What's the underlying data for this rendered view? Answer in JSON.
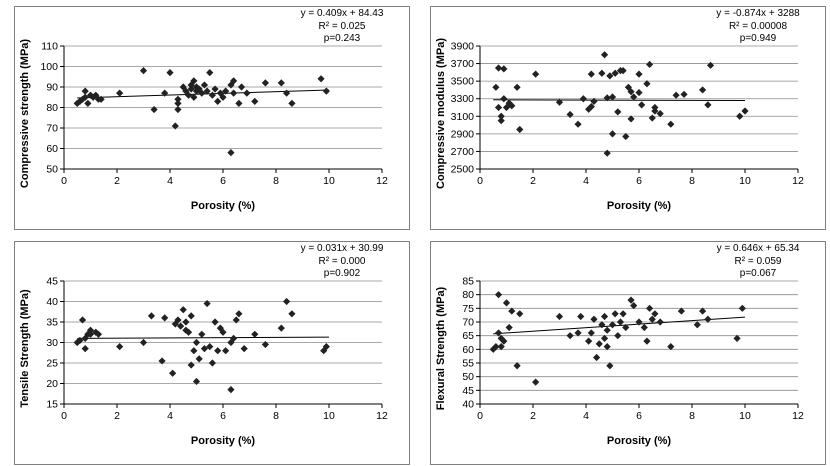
{
  "charts": [
    {
      "id": "compressive-strength",
      "chart_data": {
        "type": "scatter",
        "title": "",
        "xlabel": "Porosity (%)",
        "ylabel": "Compressive strength (MPa)",
        "xlim": [
          0,
          12
        ],
        "ylim": [
          50,
          110
        ],
        "xticks": [
          0,
          2,
          4,
          6,
          8,
          10,
          12
        ],
        "yticks": [
          50,
          60,
          70,
          80,
          90,
          100,
          110
        ],
        "grid": "horizontal",
        "marker_color": "#222222",
        "trendline": {
          "slope": 0.409,
          "intercept": 84.43
        },
        "annotation": [
          "y = 0.409x + 84.43",
          "R² = 0.025",
          "p=0.243"
        ],
        "points": [
          [
            0.5,
            82
          ],
          [
            0.6,
            83
          ],
          [
            0.7,
            84
          ],
          [
            0.8,
            85
          ],
          [
            0.8,
            88
          ],
          [
            0.9,
            82
          ],
          [
            1.0,
            86
          ],
          [
            1.1,
            85
          ],
          [
            1.2,
            86
          ],
          [
            1.3,
            84
          ],
          [
            1.4,
            84
          ],
          [
            2.1,
            87
          ],
          [
            3.0,
            98
          ],
          [
            3.4,
            79
          ],
          [
            3.8,
            87
          ],
          [
            4.0,
            97
          ],
          [
            4.2,
            71
          ],
          [
            4.3,
            79
          ],
          [
            4.3,
            82
          ],
          [
            4.3,
            84
          ],
          [
            4.5,
            90
          ],
          [
            4.6,
            88
          ],
          [
            4.7,
            86
          ],
          [
            4.8,
            89
          ],
          [
            4.8,
            91
          ],
          [
            4.9,
            85
          ],
          [
            4.9,
            93
          ],
          [
            5.0,
            88
          ],
          [
            5.0,
            90
          ],
          [
            5.1,
            89
          ],
          [
            5.2,
            87
          ],
          [
            5.3,
            91
          ],
          [
            5.4,
            88
          ],
          [
            5.5,
            97
          ],
          [
            5.6,
            86
          ],
          [
            5.7,
            89
          ],
          [
            5.8,
            83
          ],
          [
            5.9,
            87
          ],
          [
            6.0,
            85
          ],
          [
            6.1,
            88
          ],
          [
            6.3,
            58
          ],
          [
            6.3,
            91
          ],
          [
            6.4,
            93
          ],
          [
            6.4,
            87
          ],
          [
            6.6,
            82
          ],
          [
            6.7,
            90
          ],
          [
            6.9,
            87
          ],
          [
            7.2,
            83
          ],
          [
            7.6,
            92
          ],
          [
            8.2,
            92
          ],
          [
            8.4,
            87
          ],
          [
            8.6,
            82
          ],
          [
            9.7,
            94
          ],
          [
            9.9,
            88
          ]
        ]
      }
    },
    {
      "id": "compressive-modulus",
      "chart_data": {
        "type": "scatter",
        "title": "",
        "xlabel": "Porosity (%)",
        "ylabel": "Compressive modulus (MPa)",
        "xlim": [
          0,
          12
        ],
        "ylim": [
          2500,
          3900
        ],
        "xticks": [
          0,
          2,
          4,
          6,
          8,
          10,
          12
        ],
        "yticks": [
          2500,
          2700,
          2900,
          3100,
          3300,
          3500,
          3700,
          3900
        ],
        "grid": "horizontal",
        "marker_color": "#222222",
        "trendline": {
          "slope": -0.874,
          "intercept": 3288
        },
        "annotation": [
          "y = -0.874x + 3288",
          "R² = 0.00008",
          "p=0.949"
        ],
        "points": [
          [
            0.6,
            3430
          ],
          [
            0.7,
            3650
          ],
          [
            0.7,
            3200
          ],
          [
            0.8,
            3100
          ],
          [
            0.8,
            3050
          ],
          [
            0.9,
            3640
          ],
          [
            0.9,
            3300
          ],
          [
            1.0,
            3200
          ],
          [
            1.1,
            3250
          ],
          [
            1.2,
            3220
          ],
          [
            1.4,
            3430
          ],
          [
            1.5,
            2950
          ],
          [
            2.1,
            3580
          ],
          [
            3.0,
            3260
          ],
          [
            3.4,
            3120
          ],
          [
            3.7,
            3010
          ],
          [
            3.9,
            3300
          ],
          [
            4.1,
            3180
          ],
          [
            4.2,
            3210
          ],
          [
            4.2,
            3580
          ],
          [
            4.3,
            3270
          ],
          [
            4.6,
            3590
          ],
          [
            4.7,
            3800
          ],
          [
            4.8,
            2680
          ],
          [
            4.8,
            3310
          ],
          [
            4.9,
            3560
          ],
          [
            5.0,
            3320
          ],
          [
            5.0,
            2900
          ],
          [
            5.1,
            3590
          ],
          [
            5.2,
            3150
          ],
          [
            5.3,
            3620
          ],
          [
            5.4,
            3620
          ],
          [
            5.5,
            2870
          ],
          [
            5.6,
            3430
          ],
          [
            5.7,
            3380
          ],
          [
            5.7,
            3070
          ],
          [
            5.8,
            3320
          ],
          [
            6.0,
            3370
          ],
          [
            6.0,
            3580
          ],
          [
            6.1,
            3230
          ],
          [
            6.3,
            3470
          ],
          [
            6.4,
            3690
          ],
          [
            6.5,
            3080
          ],
          [
            6.6,
            3200
          ],
          [
            6.6,
            3160
          ],
          [
            6.8,
            3130
          ],
          [
            7.2,
            3010
          ],
          [
            7.4,
            3340
          ],
          [
            7.7,
            3350
          ],
          [
            8.4,
            3400
          ],
          [
            8.6,
            3230
          ],
          [
            8.7,
            3680
          ],
          [
            9.8,
            3100
          ],
          [
            10.0,
            3160
          ]
        ]
      }
    },
    {
      "id": "tensile-strength",
      "chart_data": {
        "type": "scatter",
        "title": "",
        "xlabel": "Porosity (%)",
        "ylabel": "Tensile Strength (MPa)",
        "xlim": [
          0,
          12
        ],
        "ylim": [
          15,
          45
        ],
        "xticks": [
          0,
          2,
          4,
          6,
          8,
          10,
          12
        ],
        "yticks": [
          15,
          20,
          25,
          30,
          35,
          40,
          45
        ],
        "grid": "horizontal",
        "marker_color": "#222222",
        "trendline": {
          "slope": 0.031,
          "intercept": 30.99
        },
        "annotation": [
          "y = 0.031x + 30.99",
          "R² = 0.000",
          "p=0.902"
        ],
        "points": [
          [
            0.5,
            30
          ],
          [
            0.6,
            30.5
          ],
          [
            0.7,
            35.5
          ],
          [
            0.8,
            31
          ],
          [
            0.8,
            28.5
          ],
          [
            0.9,
            32
          ],
          [
            1.0,
            33
          ],
          [
            1.0,
            32
          ],
          [
            1.2,
            32.5
          ],
          [
            1.3,
            32
          ],
          [
            2.1,
            29
          ],
          [
            3.0,
            30
          ],
          [
            3.3,
            36.5
          ],
          [
            3.7,
            25.5
          ],
          [
            3.8,
            36
          ],
          [
            4.1,
            22.5
          ],
          [
            4.2,
            34.5
          ],
          [
            4.3,
            35.5
          ],
          [
            4.4,
            34
          ],
          [
            4.5,
            38
          ],
          [
            4.6,
            33
          ],
          [
            4.6,
            35
          ],
          [
            4.7,
            32.5
          ],
          [
            4.8,
            24.5
          ],
          [
            4.8,
            36.5
          ],
          [
            4.9,
            28
          ],
          [
            5.0,
            20.5
          ],
          [
            5.0,
            30
          ],
          [
            5.1,
            26
          ],
          [
            5.2,
            32
          ],
          [
            5.3,
            28.5
          ],
          [
            5.4,
            39.5
          ],
          [
            5.5,
            29
          ],
          [
            5.6,
            25
          ],
          [
            5.7,
            35
          ],
          [
            5.8,
            28
          ],
          [
            5.9,
            33.5
          ],
          [
            6.0,
            32.5
          ],
          [
            6.1,
            28
          ],
          [
            6.3,
            18.5
          ],
          [
            6.3,
            30
          ],
          [
            6.4,
            31
          ],
          [
            6.5,
            35.5
          ],
          [
            6.6,
            37
          ],
          [
            6.8,
            28.5
          ],
          [
            7.2,
            32
          ],
          [
            7.6,
            29.5
          ],
          [
            8.2,
            33.5
          ],
          [
            8.4,
            40
          ],
          [
            8.6,
            37
          ],
          [
            9.8,
            28
          ],
          [
            9.9,
            29
          ]
        ]
      }
    },
    {
      "id": "flexural-strength",
      "chart_data": {
        "type": "scatter",
        "title": "",
        "xlabel": "Porosity (%)",
        "ylabel": "Flexural Strength (MPa)",
        "xlim": [
          0,
          12
        ],
        "ylim": [
          40,
          85
        ],
        "xticks": [
          0,
          2,
          4,
          6,
          8,
          10,
          12
        ],
        "yticks": [
          40,
          45,
          50,
          55,
          60,
          65,
          70,
          75,
          80,
          85
        ],
        "grid": "horizontal",
        "marker_color": "#222222",
        "trendline": {
          "slope": 0.646,
          "intercept": 65.34
        },
        "annotation": [
          "y = 0.646x + 65.34",
          "R² = 0.059",
          "p=0.067"
        ],
        "points": [
          [
            0.5,
            60
          ],
          [
            0.6,
            61
          ],
          [
            0.7,
            66
          ],
          [
            0.7,
            80
          ],
          [
            0.8,
            61
          ],
          [
            0.8,
            64
          ],
          [
            0.9,
            63
          ],
          [
            1.0,
            77
          ],
          [
            1.1,
            68
          ],
          [
            1.2,
            74
          ],
          [
            1.4,
            54
          ],
          [
            1.5,
            73
          ],
          [
            2.1,
            48
          ],
          [
            3.0,
            72
          ],
          [
            3.4,
            65
          ],
          [
            3.7,
            66
          ],
          [
            3.8,
            72
          ],
          [
            4.1,
            63
          ],
          [
            4.2,
            66
          ],
          [
            4.3,
            71
          ],
          [
            4.4,
            57
          ],
          [
            4.5,
            62
          ],
          [
            4.6,
            69
          ],
          [
            4.7,
            64
          ],
          [
            4.7,
            72
          ],
          [
            4.8,
            61
          ],
          [
            4.8,
            67
          ],
          [
            4.9,
            54
          ],
          [
            5.0,
            69
          ],
          [
            5.1,
            73
          ],
          [
            5.2,
            65
          ],
          [
            5.3,
            70
          ],
          [
            5.4,
            73
          ],
          [
            5.5,
            68
          ],
          [
            5.7,
            78
          ],
          [
            5.8,
            76
          ],
          [
            6.0,
            70
          ],
          [
            6.2,
            68
          ],
          [
            6.3,
            63
          ],
          [
            6.4,
            75
          ],
          [
            6.5,
            71
          ],
          [
            6.6,
            73
          ],
          [
            6.8,
            70
          ],
          [
            7.2,
            61
          ],
          [
            7.6,
            74
          ],
          [
            8.2,
            69
          ],
          [
            8.4,
            74
          ],
          [
            8.6,
            71
          ],
          [
            9.7,
            64
          ],
          [
            9.9,
            75
          ]
        ]
      }
    }
  ]
}
